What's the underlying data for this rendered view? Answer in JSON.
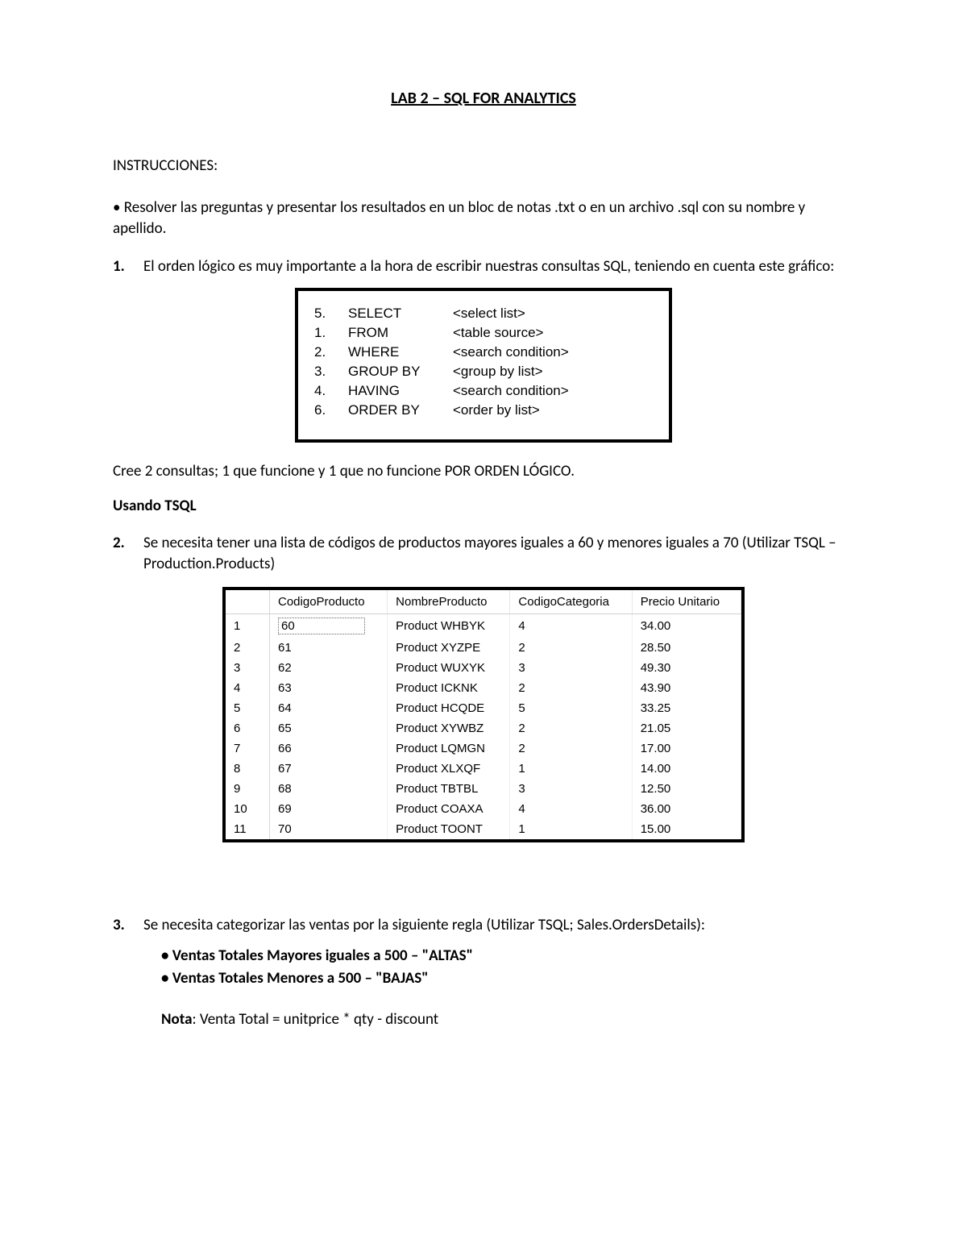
{
  "title": "LAB 2 – SQL FOR ANALYTICS",
  "instr_label": "INSTRUCCIONES:",
  "intro_bullet": "• Resolver las preguntas y presentar los resultados en un bloc de notas .txt o en un archivo .sql con su nombre y apellido.",
  "q1": {
    "num": "1.",
    "text": "El orden lógico es muy importante a la hora de escribir nuestras consultas SQL, teniendo en cuenta este gráfico:"
  },
  "sql_order": [
    {
      "n": "5.",
      "kw": "SELECT",
      "arg": "<select list>"
    },
    {
      "n": "1.",
      "kw": "FROM",
      "arg": "<table source>"
    },
    {
      "n": "2.",
      "kw": "WHERE",
      "arg": "<search condition>"
    },
    {
      "n": "3.",
      "kw": "GROUP BY",
      "arg": "<group by list>"
    },
    {
      "n": "4.",
      "kw": "HAVING",
      "arg": "<search condition>"
    },
    {
      "n": "6.",
      "kw": "ORDER BY",
      "arg": "<order by list>"
    }
  ],
  "q1_after": "Cree 2 consultas; 1 que funcione y 1 que no funcione POR ORDEN LÓGICO.",
  "using_tsql": "Usando TSQL",
  "q2": {
    "num": "2.",
    "text": "Se necesita tener una lista de códigos de productos mayores iguales a 60 y menores iguales a 70 (Utilizar TSQL – Production.Products)"
  },
  "table": {
    "columns": [
      "",
      "CodigoProducto",
      "NombreProducto",
      "CodigoCategoria",
      "Precio Unitario"
    ],
    "rows": [
      [
        "1",
        "60",
        "Product WHBYK",
        "4",
        "34.00"
      ],
      [
        "2",
        "61",
        "Product XYZPE",
        "2",
        "28.50"
      ],
      [
        "3",
        "62",
        "Product WUXYK",
        "3",
        "49.30"
      ],
      [
        "4",
        "63",
        "Product ICKNK",
        "2",
        "43.90"
      ],
      [
        "5",
        "64",
        "Product HCQDE",
        "5",
        "33.25"
      ],
      [
        "6",
        "65",
        "Product XYWBZ",
        "2",
        "21.05"
      ],
      [
        "7",
        "66",
        "Product LQMGN",
        "2",
        "17.00"
      ],
      [
        "8",
        "67",
        "Product XLXQF",
        "1",
        "14.00"
      ],
      [
        "9",
        "68",
        "Product TBTBL",
        "3",
        "12.50"
      ],
      [
        "10",
        "69",
        "Product COAXA",
        "4",
        "36.00"
      ],
      [
        "11",
        "70",
        "Product TOONT",
        "1",
        "15.00"
      ]
    ]
  },
  "q3": {
    "num": "3.",
    "text": "Se necesita categorizar las ventas por la siguiente regla (Utilizar TSQL; Sales.OrdersDetails):",
    "b1": "• Ventas Totales Mayores iguales a 500 – \"ALTAS\"",
    "b2": "• Ventas Totales Menores a 500 – \"BAJAS\"",
    "nota_label": "Nota",
    "nota_text": ": Venta Total = unitprice * qty - discount"
  }
}
